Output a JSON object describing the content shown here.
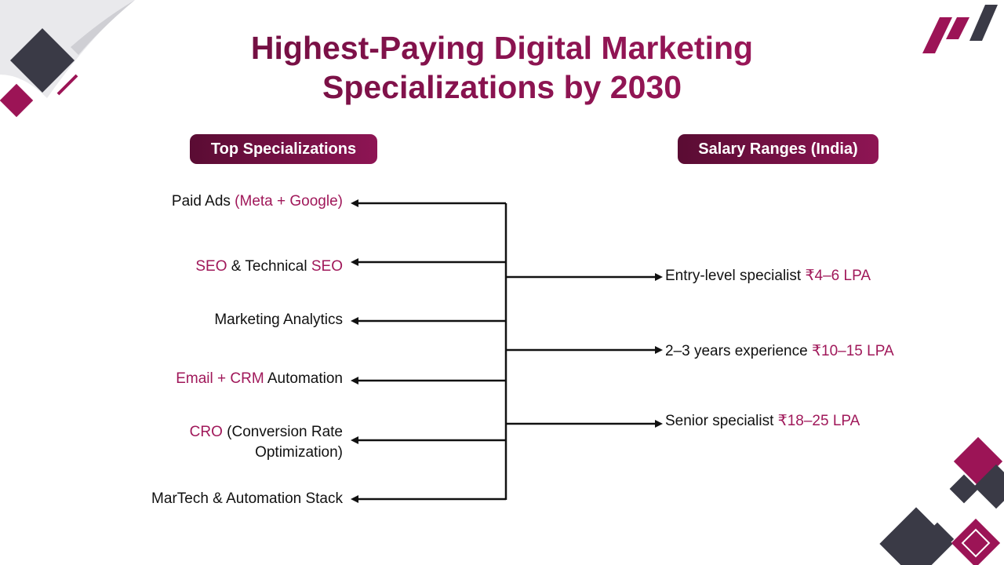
{
  "header": {
    "title_line1": "Highest-Paying Digital Marketing",
    "title_line2": "Specializations by 2030"
  },
  "columns": {
    "left_label": "Top Specializations",
    "right_label": "Salary Ranges (India)"
  },
  "specializations": [
    {
      "pre": "Paid Ads ",
      "hl": "(Meta + Google)",
      "post": ""
    },
    {
      "hl1": "SEO",
      "mid": " & Technical ",
      "hl2": "SEO"
    },
    {
      "text": "Marketing Analytics"
    },
    {
      "hl": "Email + CRM",
      "post": " Automation"
    },
    {
      "hl": "CRO",
      "post": " (Conversion Rate",
      "line2": "Optimization)"
    },
    {
      "text": "MarTech & Automation Stack"
    }
  ],
  "salaries": [
    {
      "label": "Entry-level specialist ",
      "value": "₹4–6 LPA"
    },
    {
      "label": "2–3 years experience ",
      "value": "₹10–15 LPA"
    },
    {
      "label": "Senior specialist ",
      "value": "₹18–25 LPA"
    }
  ],
  "colors": {
    "dark": "#3a3a46",
    "accent": "#9c1456",
    "title": "#6a0f3c"
  }
}
